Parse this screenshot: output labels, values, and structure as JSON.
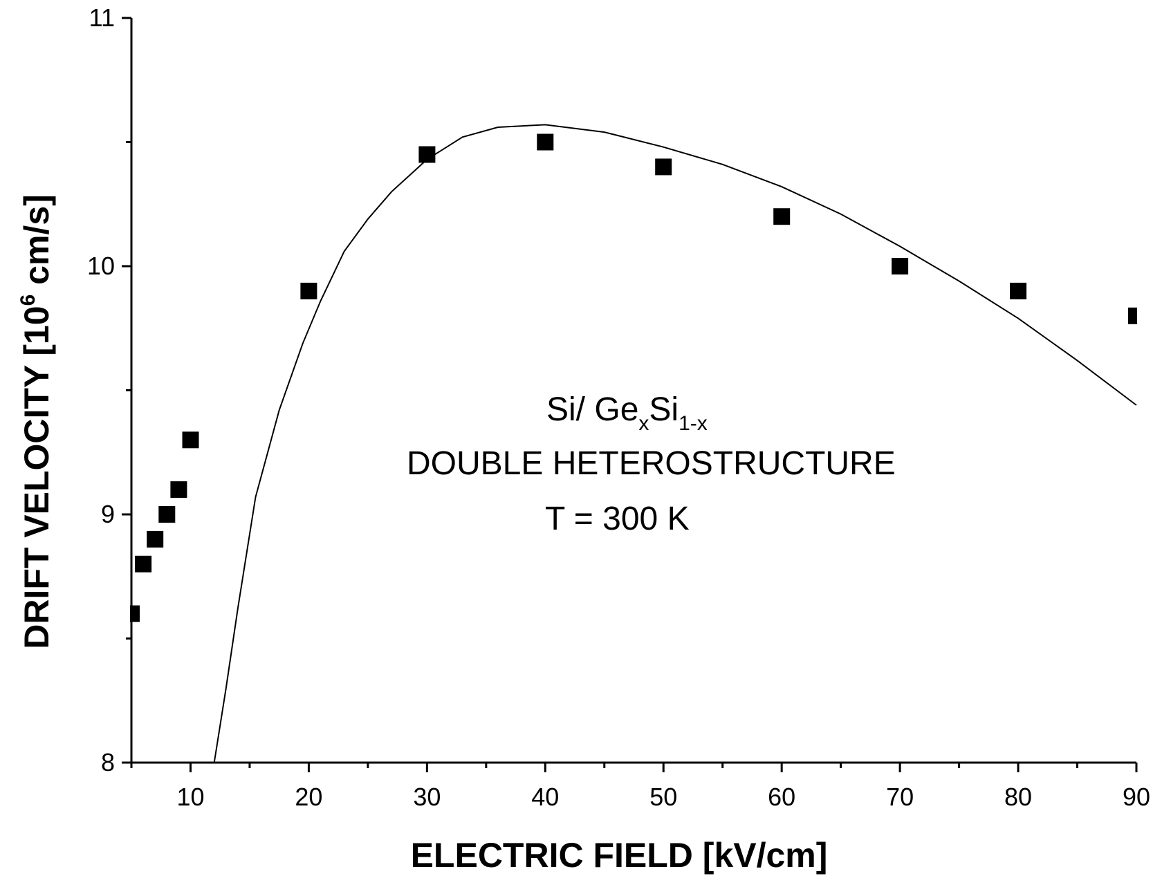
{
  "chart_data": {
    "type": "scatter",
    "xlabel": "ELECTRIC FIELD [kV/cm]",
    "ylabel": {
      "main": "DRIFT VELOCITY [10",
      "sup": "6",
      "tail": " cm/s]"
    },
    "xlim": [
      5,
      90
    ],
    "ylim": [
      8,
      11
    ],
    "x_major_ticks": [
      10,
      20,
      30,
      40,
      50,
      60,
      70,
      80,
      90
    ],
    "x_tick_labels": [
      "10",
      "20",
      "30",
      "40",
      "50",
      "60",
      "70",
      "80",
      "90"
    ],
    "x_minor_ticks": [
      5,
      15,
      25,
      35,
      45,
      55,
      65,
      75,
      85
    ],
    "y_major_ticks": [
      8,
      9,
      10,
      11
    ],
    "y_tick_labels": [
      "8",
      "9",
      "10",
      "11"
    ],
    "y_minor_ticks": [
      8.5,
      9.5,
      10.5
    ],
    "grid": false,
    "series": [
      {
        "kind": "points",
        "marker": "square",
        "x": [
          5,
          6,
          7,
          8,
          9,
          10,
          20,
          30,
          40,
          50,
          60,
          70,
          80,
          90
        ],
        "y": [
          8.6,
          8.8,
          8.9,
          9.0,
          9.1,
          9.3,
          9.9,
          10.45,
          10.5,
          10.4,
          10.2,
          10.0,
          9.9,
          9.8
        ]
      },
      {
        "kind": "line",
        "x": [
          12.0,
          13.0,
          14.0,
          15.5,
          17.5,
          19.5,
          21.0,
          23.0,
          25.0,
          27.0,
          30.0,
          33.0,
          36.0,
          40.0,
          45.0,
          50.0,
          55.0,
          60.0,
          65.0,
          70.0,
          75.0,
          80.0,
          85.0,
          90.0
        ],
        "y": [
          8.0,
          8.3,
          8.62,
          9.07,
          9.42,
          9.69,
          9.86,
          10.06,
          10.19,
          10.3,
          10.43,
          10.52,
          10.56,
          10.57,
          10.54,
          10.48,
          10.41,
          10.32,
          10.21,
          10.08,
          9.94,
          9.79,
          9.62,
          9.44
        ]
      }
    ],
    "annotation": {
      "line1": {
        "a": "Si/ Ge",
        "sub1": "x",
        "b": "Si",
        "sub2": "1-x"
      },
      "line2": "DOUBLE HETEROSTRUCTURE",
      "line3": "T  = 300 K"
    }
  }
}
